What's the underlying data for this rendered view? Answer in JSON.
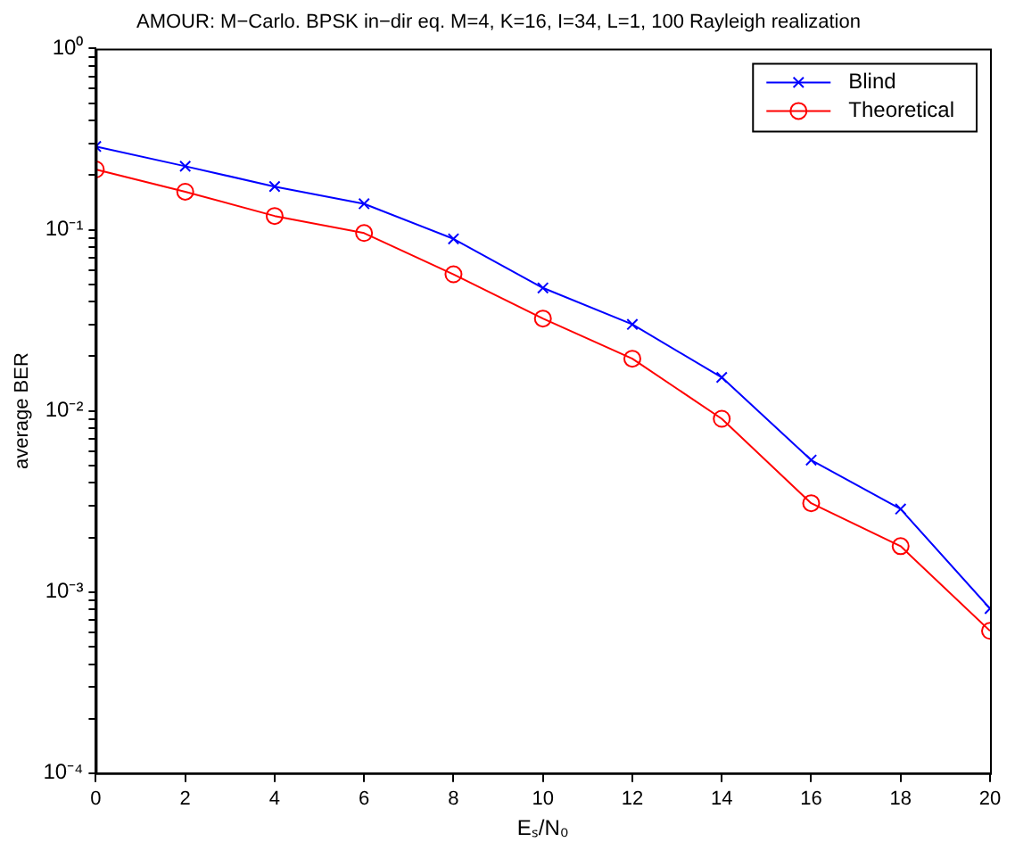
{
  "chart_data": {
    "type": "line",
    "title": "AMOUR: M−Carlo. BPSK in−dir eq. M=4, K=16, I=34, L=1, 100 Rayleigh realization",
    "xlabel": "Eₛ/N₀",
    "ylabel": "average BER",
    "x": [
      0,
      2,
      4,
      6,
      8,
      10,
      12,
      14,
      16,
      18,
      20
    ],
    "series": [
      {
        "name": "Blind",
        "color": "#0000ff",
        "marker": "cross",
        "values": [
          0.288,
          0.224,
          0.173,
          0.139,
          0.089,
          0.0477,
          0.03,
          0.0153,
          0.00535,
          0.00287,
          0.00081
        ]
      },
      {
        "name": "Theoretical",
        "color": "#ff0000",
        "marker": "circle",
        "values": [
          0.215,
          0.162,
          0.119,
          0.0958,
          0.0567,
          0.0323,
          0.0194,
          0.00904,
          0.00309,
          0.00179,
          0.00061
        ]
      }
    ],
    "log": "y",
    "xlim": [
      0,
      20
    ],
    "xticks": [
      0,
      2,
      4,
      6,
      8,
      10,
      12,
      14,
      16,
      18,
      20
    ],
    "ylim": [
      0.0001,
      1
    ],
    "yticks": [
      {
        "value": 0.0001,
        "label": "10⁻⁴"
      },
      {
        "value": 0.0002,
        "label": null
      },
      {
        "value": 0.0003,
        "label": null
      },
      {
        "value": 0.0004,
        "label": null
      },
      {
        "value": 0.0005,
        "label": null
      },
      {
        "value": 0.0006,
        "label": null
      },
      {
        "value": 0.0007,
        "label": null
      },
      {
        "value": 0.0008,
        "label": null
      },
      {
        "value": 0.0009,
        "label": null
      },
      {
        "value": 0.001,
        "label": "10⁻³"
      },
      {
        "value": 0.002,
        "label": null
      },
      {
        "value": 0.003,
        "label": null
      },
      {
        "value": 0.004,
        "label": null
      },
      {
        "value": 0.005,
        "label": null
      },
      {
        "value": 0.006,
        "label": null
      },
      {
        "value": 0.007,
        "label": null
      },
      {
        "value": 0.008,
        "label": null
      },
      {
        "value": 0.009,
        "label": null
      },
      {
        "value": 0.01,
        "label": "10⁻²"
      },
      {
        "value": 0.02,
        "label": null
      },
      {
        "value": 0.03,
        "label": null
      },
      {
        "value": 0.04,
        "label": null
      },
      {
        "value": 0.05,
        "label": null
      },
      {
        "value": 0.06,
        "label": null
      },
      {
        "value": 0.07,
        "label": null
      },
      {
        "value": 0.08,
        "label": null
      },
      {
        "value": 0.09,
        "label": null
      },
      {
        "value": 0.1,
        "label": "10⁻¹"
      },
      {
        "value": 0.2,
        "label": null
      },
      {
        "value": 0.3,
        "label": null
      },
      {
        "value": 0.4,
        "label": null
      },
      {
        "value": 0.5,
        "label": null
      },
      {
        "value": 0.6,
        "label": null
      },
      {
        "value": 0.7,
        "label": null
      },
      {
        "value": 0.8,
        "label": null
      },
      {
        "value": 0.9,
        "label": null
      },
      {
        "value": 1,
        "label": "10⁰"
      }
    ],
    "grid": false,
    "legend": "top right",
    "line_style": "solid"
  }
}
